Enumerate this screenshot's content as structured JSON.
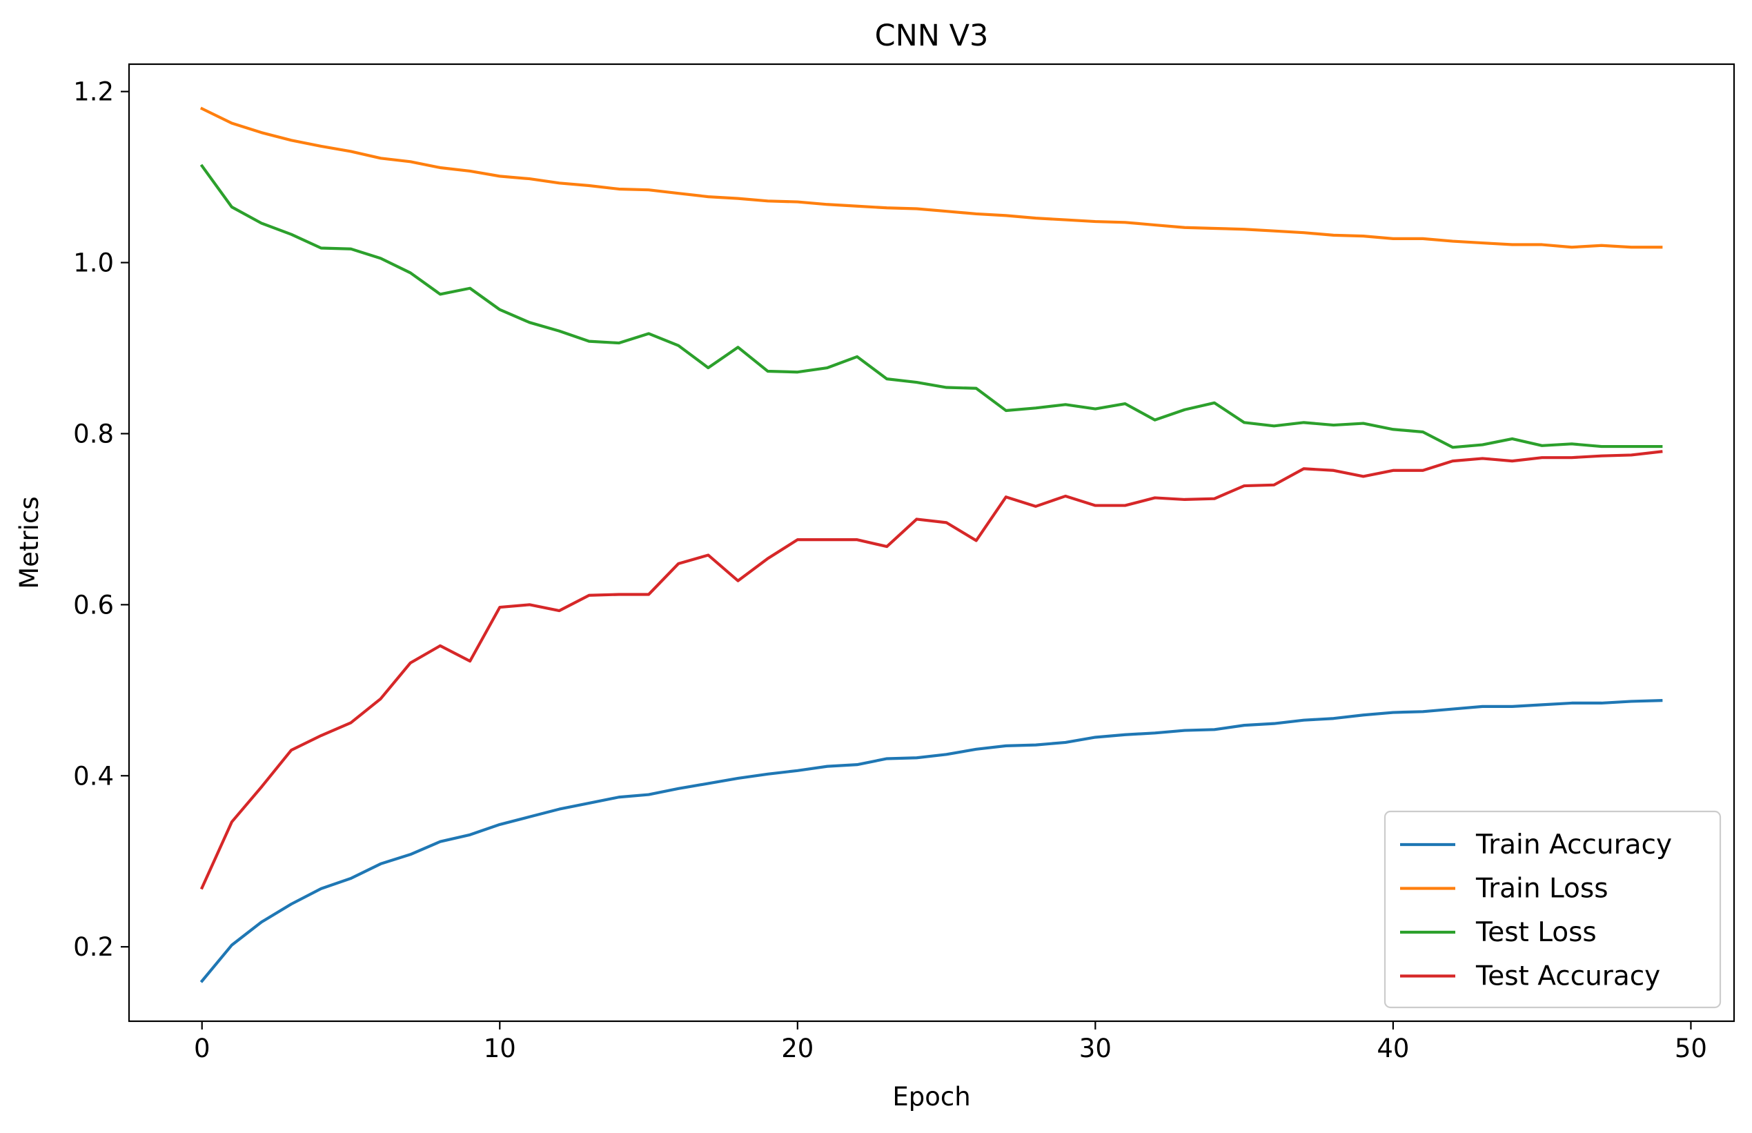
{
  "chart_data": {
    "type": "line",
    "title": "CNN V3",
    "xlabel": "Epoch",
    "ylabel": "Metrics",
    "xlim": [
      -2.45,
      51.45
    ],
    "ylim": [
      0.113,
      1.232
    ],
    "xticks": [
      0,
      10,
      20,
      30,
      40,
      50
    ],
    "yticks": [
      0.2,
      0.4,
      0.6,
      0.8,
      1.0,
      1.2
    ],
    "xtick_labels": [
      "0",
      "10",
      "20",
      "30",
      "40",
      "50"
    ],
    "ytick_labels": [
      "0.2",
      "0.4",
      "0.6",
      "0.8",
      "1.0",
      "1.2"
    ],
    "grid": false,
    "legend_position": "lower-right",
    "x": [
      0,
      1,
      2,
      3,
      4,
      5,
      6,
      7,
      8,
      9,
      10,
      11,
      12,
      13,
      14,
      15,
      16,
      17,
      18,
      19,
      20,
      21,
      22,
      23,
      24,
      25,
      26,
      27,
      28,
      29,
      30,
      31,
      32,
      33,
      34,
      35,
      36,
      37,
      38,
      39,
      40,
      41,
      42,
      43,
      44,
      45,
      46,
      47,
      48,
      49
    ],
    "series": [
      {
        "name": "Train Accuracy",
        "color": "#1f77b4",
        "values": [
          0.16,
          0.202,
          0.229,
          0.25,
          0.268,
          0.28,
          0.297,
          0.308,
          0.323,
          0.331,
          0.343,
          0.352,
          0.361,
          0.368,
          0.375,
          0.378,
          0.385,
          0.391,
          0.397,
          0.402,
          0.406,
          0.411,
          0.413,
          0.42,
          0.421,
          0.425,
          0.431,
          0.435,
          0.436,
          0.439,
          0.445,
          0.448,
          0.45,
          0.453,
          0.454,
          0.459,
          0.461,
          0.465,
          0.467,
          0.471,
          0.474,
          0.475,
          0.478,
          0.481,
          0.481,
          0.483,
          0.485,
          0.485,
          0.487,
          0.488
        ]
      },
      {
        "name": "Train Loss",
        "color": "#ff7f0e",
        "values": [
          1.18,
          1.163,
          1.152,
          1.143,
          1.136,
          1.13,
          1.122,
          1.118,
          1.111,
          1.107,
          1.101,
          1.098,
          1.093,
          1.09,
          1.086,
          1.085,
          1.081,
          1.077,
          1.075,
          1.072,
          1.071,
          1.068,
          1.066,
          1.064,
          1.063,
          1.06,
          1.057,
          1.055,
          1.052,
          1.05,
          1.048,
          1.047,
          1.044,
          1.041,
          1.04,
          1.039,
          1.037,
          1.035,
          1.032,
          1.031,
          1.028,
          1.028,
          1.025,
          1.023,
          1.021,
          1.021,
          1.018,
          1.02,
          1.018,
          1.018
        ]
      },
      {
        "name": "Test Loss",
        "color": "#2ca02c",
        "values": [
          1.113,
          1.065,
          1.046,
          1.033,
          1.017,
          1.016,
          1.005,
          0.988,
          0.963,
          0.97,
          0.945,
          0.93,
          0.92,
          0.908,
          0.906,
          0.917,
          0.903,
          0.877,
          0.901,
          0.873,
          0.872,
          0.877,
          0.89,
          0.864,
          0.86,
          0.854,
          0.853,
          0.827,
          0.83,
          0.834,
          0.829,
          0.835,
          0.816,
          0.828,
          0.836,
          0.813,
          0.809,
          0.813,
          0.81,
          0.812,
          0.805,
          0.802,
          0.784,
          0.787,
          0.794,
          0.786,
          0.788,
          0.785,
          0.785,
          0.785
        ]
      },
      {
        "name": "Test Accuracy",
        "color": "#d62728",
        "values": [
          0.269,
          0.346,
          0.387,
          0.43,
          0.447,
          0.462,
          0.49,
          0.532,
          0.552,
          0.534,
          0.597,
          0.6,
          0.593,
          0.611,
          0.612,
          0.612,
          0.648,
          0.658,
          0.628,
          0.654,
          0.676,
          0.676,
          0.676,
          0.668,
          0.7,
          0.696,
          0.675,
          0.726,
          0.715,
          0.727,
          0.716,
          0.716,
          0.725,
          0.723,
          0.724,
          0.739,
          0.74,
          0.759,
          0.757,
          0.75,
          0.757,
          0.757,
          0.768,
          0.771,
          0.768,
          0.772,
          0.772,
          0.774,
          0.775,
          0.779
        ]
      }
    ]
  }
}
